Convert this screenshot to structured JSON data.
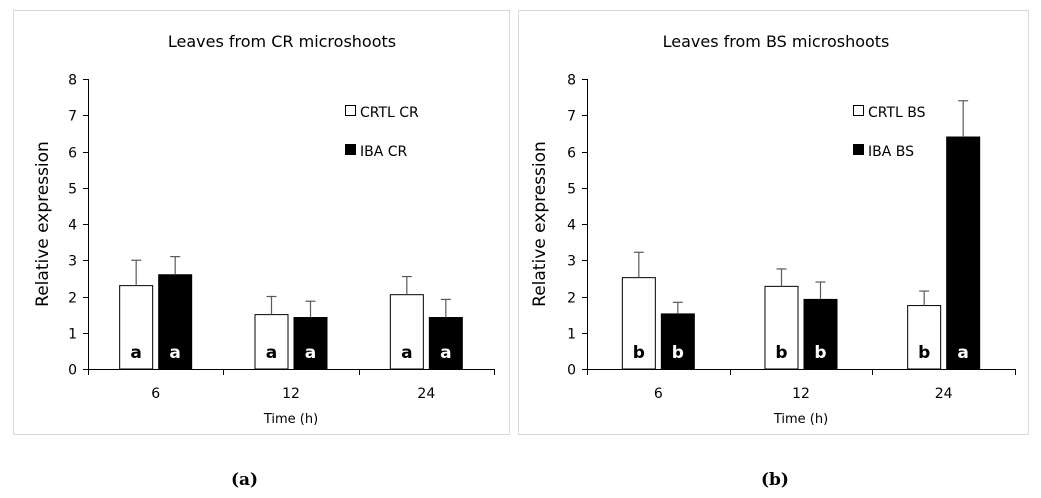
{
  "chart_data": [
    {
      "type": "bar",
      "title": "Leaves from CR microshoots",
      "xlabel": "Time (h)",
      "ylabel": "Relative expression",
      "categories": [
        "6",
        "12",
        "24"
      ],
      "ylim": [
        0,
        8
      ],
      "yticks": [
        0,
        1,
        2,
        3,
        4,
        5,
        6,
        7,
        8
      ],
      "legend_position": "top-right",
      "series": [
        {
          "name": "CRTL CR",
          "color": "#ffffff",
          "values": [
            2.3,
            1.5,
            2.05
          ],
          "errors": [
            0.7,
            0.5,
            0.5
          ],
          "letters": [
            "a",
            "a",
            "a"
          ]
        },
        {
          "name": "IBA CR",
          "color": "#000000",
          "values": [
            2.6,
            1.42,
            1.42
          ],
          "errors": [
            0.5,
            0.45,
            0.5
          ],
          "letters": [
            "a",
            "a",
            "a"
          ]
        }
      ],
      "caption": "(a)"
    },
    {
      "type": "bar",
      "title": "Leaves from BS microshoots",
      "xlabel": "Time (h)",
      "ylabel": "Relative expression",
      "categories": [
        "6",
        "12",
        "24"
      ],
      "ylim": [
        0,
        8
      ],
      "yticks": [
        0,
        1,
        2,
        3,
        4,
        5,
        6,
        7,
        8
      ],
      "legend_position": "top-right",
      "series": [
        {
          "name": "CRTL BS",
          "color": "#ffffff",
          "values": [
            2.52,
            2.28,
            1.75
          ],
          "errors": [
            0.7,
            0.48,
            0.4
          ],
          "letters": [
            "b",
            "b",
            "b"
          ]
        },
        {
          "name": "IBA BS",
          "color": "#000000",
          "values": [
            1.52,
            1.92,
            6.4
          ],
          "errors": [
            0.32,
            0.48,
            1.0
          ],
          "letters": [
            "b",
            "b",
            "a"
          ]
        }
      ],
      "caption": "(b)"
    }
  ]
}
